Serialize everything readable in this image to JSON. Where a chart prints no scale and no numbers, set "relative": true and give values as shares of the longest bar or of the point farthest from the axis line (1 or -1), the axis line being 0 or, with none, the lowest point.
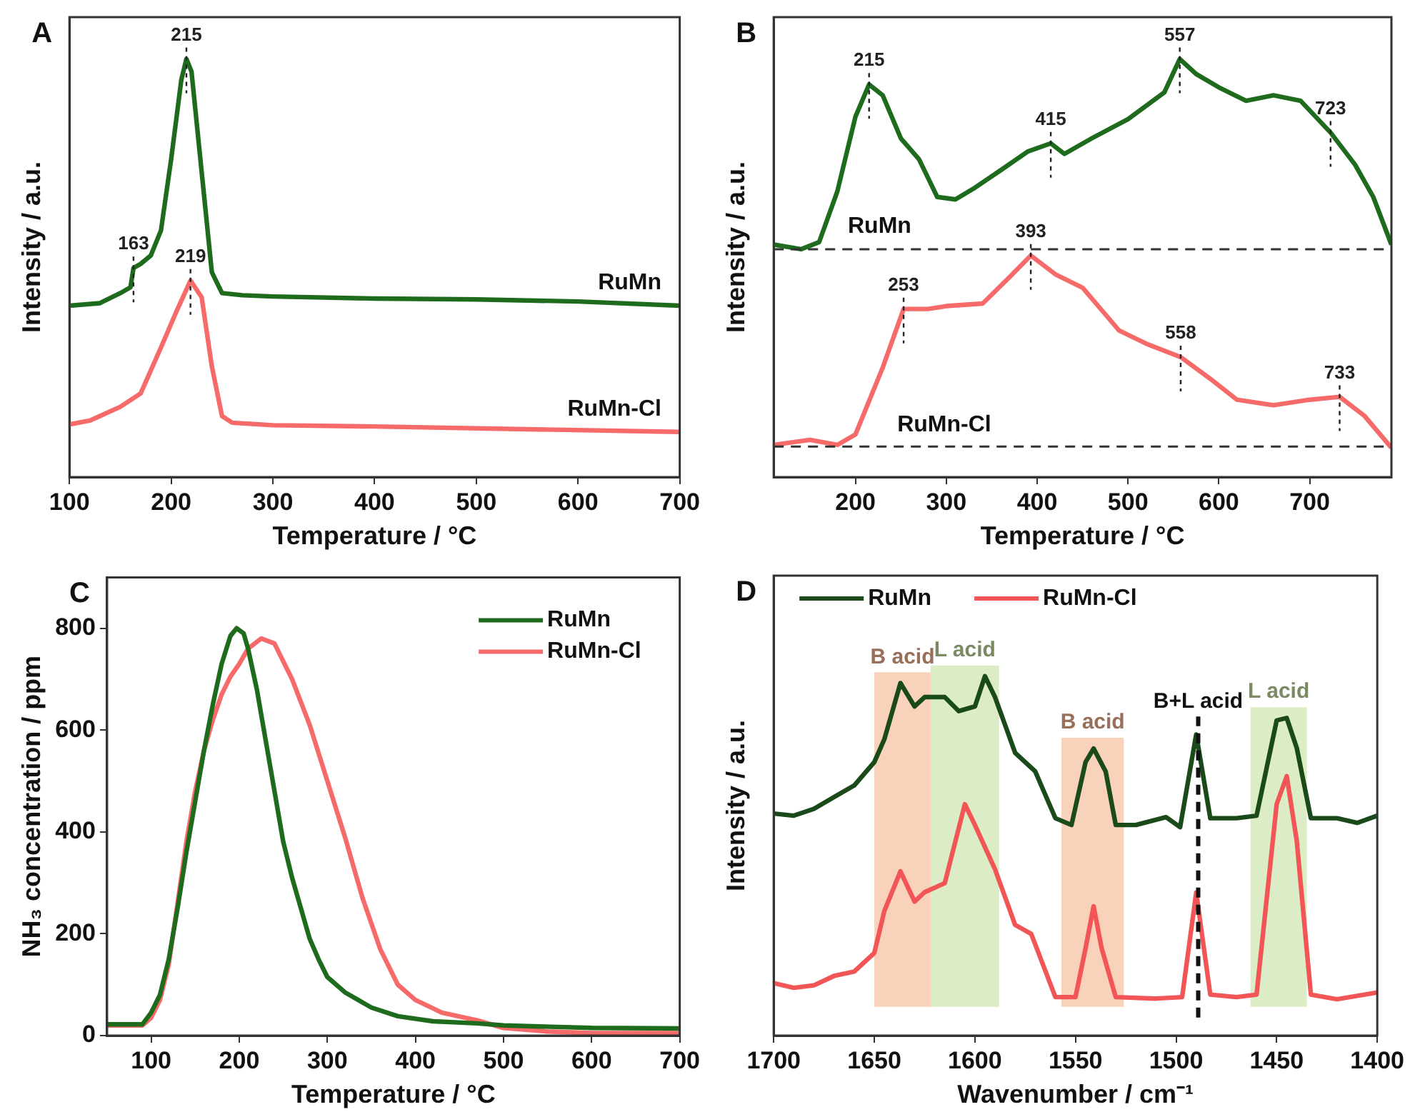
{
  "chart_data": [
    {
      "type": "line",
      "title": "A",
      "xlabel": "Temperature / °C",
      "ylabel": "Intensity / a.u.",
      "relative": true,
      "xlim": [
        100,
        700
      ],
      "xticks": [
        100,
        200,
        300,
        400,
        500,
        600,
        700
      ],
      "legend": false,
      "marker": "none",
      "series": [
        {
          "name": "RuMn",
          "color": "#1e6b1e",
          "x": [
            100,
            130,
            150,
            160,
            163,
            170,
            180,
            190,
            200,
            210,
            215,
            220,
            230,
            240,
            250,
            270,
            300,
            400,
            500,
            600,
            700
          ],
          "values": [
            0.41,
            0.416,
            0.44,
            0.454,
            0.5,
            0.51,
            0.53,
            0.59,
            0.76,
            0.95,
            1.0,
            0.97,
            0.73,
            0.49,
            0.44,
            0.435,
            0.432,
            0.427,
            0.425,
            0.42,
            0.41
          ]
        },
        {
          "name": "RuMn-Cl",
          "color": "#f66a6a",
          "x": [
            100,
            120,
            150,
            170,
            190,
            205,
            219,
            230,
            240,
            250,
            260,
            300,
            400,
            700
          ],
          "values": [
            0.126,
            0.135,
            0.168,
            0.2,
            0.31,
            0.395,
            0.47,
            0.43,
            0.265,
            0.146,
            0.13,
            0.124,
            0.121,
            0.108
          ]
        }
      ],
      "annotations": [
        {
          "text": "163",
          "x": 163,
          "y": 0.5
        },
        {
          "text": "215",
          "x": 215,
          "y": 1.0
        },
        {
          "text": "219",
          "x": 219,
          "y": 0.47
        }
      ]
    },
    {
      "type": "line",
      "title": "B",
      "xlabel": "Temperature / °C",
      "ylabel": "Intensity / a.u.",
      "relative": true,
      "xlim": [
        110,
        790
      ],
      "xticks": [
        200,
        300,
        400,
        500,
        600,
        700
      ],
      "legend": false,
      "marker": "none",
      "series": [
        {
          "name": "RuMn",
          "color": "#1e6b1e",
          "x": [
            110,
            140,
            160,
            180,
            200,
            215,
            230,
            250,
            270,
            290,
            310,
            330,
            360,
            390,
            415,
            430,
            460,
            500,
            540,
            557,
            575,
            600,
            630,
            660,
            690,
            723,
            750,
            770,
            790
          ],
          "values": [
            0.556,
            0.545,
            0.562,
            0.683,
            0.862,
            0.939,
            0.913,
            0.81,
            0.76,
            0.67,
            0.664,
            0.69,
            0.734,
            0.779,
            0.798,
            0.773,
            0.81,
            0.856,
            0.92,
            1.0,
            0.964,
            0.932,
            0.9,
            0.913,
            0.9,
            0.824,
            0.747,
            0.67,
            0.556
          ]
        },
        {
          "name": "RuMn-Cl",
          "color": "#f66a6a",
          "x": [
            110,
            150,
            180,
            200,
            230,
            253,
            280,
            300,
            340,
            370,
            393,
            420,
            450,
            490,
            520,
            558,
            590,
            620,
            660,
            700,
            733,
            760,
            790
          ],
          "values": [
            0.077,
            0.089,
            0.077,
            0.102,
            0.262,
            0.402,
            0.402,
            0.409,
            0.415,
            0.479,
            0.53,
            0.485,
            0.453,
            0.351,
            0.319,
            0.287,
            0.236,
            0.185,
            0.172,
            0.185,
            0.192,
            0.147,
            0.07
          ]
        }
      ],
      "ref_lines": [
        {
          "axis": "y",
          "value": 0.545,
          "color": "#333333",
          "line_style": "dashed"
        },
        {
          "axis": "y",
          "value": 0.073,
          "color": "#333333",
          "line_style": "dashed"
        }
      ],
      "annotations": [
        {
          "text": "215",
          "x": 215,
          "y": 0.939
        },
        {
          "text": "415",
          "x": 415,
          "y": 0.798
        },
        {
          "text": "557",
          "x": 557,
          "y": 1.0
        },
        {
          "text": "723",
          "x": 723,
          "y": 0.824
        },
        {
          "text": "253",
          "x": 253,
          "y": 0.402
        },
        {
          "text": "393",
          "x": 393,
          "y": 0.53
        },
        {
          "text": "558",
          "x": 558,
          "y": 0.287
        },
        {
          "text": "733",
          "x": 733,
          "y": 0.192
        }
      ]
    },
    {
      "type": "line",
      "title": "C",
      "xlabel": "Temperature / °C",
      "ylabel": "NH₃ concentration / ppm",
      "xlim": [
        50,
        700
      ],
      "xticks": [
        100,
        200,
        300,
        400,
        500,
        600,
        700
      ],
      "ylim": [
        0,
        900
      ],
      "yticks": [
        0,
        200,
        400,
        600,
        800
      ],
      "legend": "top right",
      "marker": "none",
      "series": [
        {
          "name": "RuMn",
          "color": "#1e6b1e",
          "x": [
            50,
            90,
            100,
            110,
            120,
            130,
            140,
            150,
            160,
            170,
            180,
            190,
            197,
            205,
            210,
            220,
            230,
            240,
            250,
            260,
            270,
            280,
            290,
            300,
            320,
            350,
            380,
            420,
            470,
            500,
            600,
            700
          ],
          "values": [
            22,
            22,
            45,
            80,
            150,
            250,
            360,
            460,
            560,
            650,
            730,
            785,
            800,
            790,
            760,
            680,
            580,
            480,
            380,
            310,
            250,
            190,
            150,
            115,
            85,
            55,
            38,
            28,
            24,
            20,
            15,
            14
          ]
        },
        {
          "name": "RuMn-Cl",
          "color": "#f66a6a",
          "x": [
            50,
            90,
            100,
            110,
            120,
            130,
            140,
            150,
            160,
            170,
            180,
            190,
            200,
            210,
            225,
            240,
            260,
            280,
            300,
            320,
            340,
            360,
            380,
            400,
            430,
            470,
            500,
            550,
            600,
            700
          ],
          "values": [
            20,
            20,
            35,
            70,
            140,
            260,
            380,
            480,
            560,
            620,
            670,
            705,
            730,
            760,
            780,
            770,
            700,
            610,
            500,
            390,
            270,
            170,
            100,
            70,
            45,
            30,
            15,
            8,
            5,
            5
          ]
        }
      ]
    },
    {
      "type": "line",
      "title": "D",
      "xlabel": "Wavenumber / cm⁻¹",
      "ylabel": "Intensity / a.u.",
      "relative": true,
      "xlim": [
        1700,
        1400
      ],
      "xticks": [
        1700,
        1650,
        1600,
        1550,
        1500,
        1450,
        1400
      ],
      "legend": "top left",
      "marker": "none",
      "series": [
        {
          "name": "RuMn",
          "color": "#1a4a1a",
          "x": [
            1700,
            1690,
            1680,
            1670,
            1660,
            1650,
            1645,
            1637,
            1630,
            1625,
            1615,
            1608,
            1600,
            1595,
            1590,
            1580,
            1570,
            1560,
            1552,
            1545,
            1541,
            1535,
            1530,
            1520,
            1505,
            1498,
            1490,
            1483,
            1470,
            1460,
            1450,
            1445,
            1440,
            1433,
            1420,
            1410,
            1400
          ],
          "values": [
            0.618,
            0.612,
            0.631,
            0.664,
            0.696,
            0.761,
            0.825,
            0.981,
            0.916,
            0.942,
            0.942,
            0.903,
            0.916,
            1.0,
            0.942,
            0.787,
            0.735,
            0.605,
            0.586,
            0.761,
            0.799,
            0.735,
            0.586,
            0.586,
            0.608,
            0.58,
            0.838,
            0.605,
            0.605,
            0.612,
            0.877,
            0.884,
            0.8,
            0.605,
            0.605,
            0.592,
            0.612
          ]
        },
        {
          "name": "RuMn-Cl",
          "color": "#f25555",
          "x": [
            1700,
            1690,
            1680,
            1670,
            1660,
            1650,
            1645,
            1637,
            1630,
            1625,
            1615,
            1605,
            1600,
            1590,
            1580,
            1572,
            1560,
            1550,
            1545,
            1541,
            1537,
            1530,
            1510,
            1497,
            1490,
            1483,
            1470,
            1460,
            1450,
            1445,
            1440,
            1433,
            1420,
            1400
          ],
          "values": [
            0.146,
            0.133,
            0.14,
            0.166,
            0.178,
            0.23,
            0.347,
            0.457,
            0.373,
            0.399,
            0.424,
            0.644,
            0.586,
            0.463,
            0.308,
            0.283,
            0.107,
            0.107,
            0.243,
            0.36,
            0.243,
            0.107,
            0.103,
            0.107,
            0.398,
            0.114,
            0.107,
            0.114,
            0.644,
            0.722,
            0.541,
            0.114,
            0.101,
            0.12
          ]
        }
      ],
      "bands": [
        {
          "axis": "x",
          "from": 1650,
          "to": 1622,
          "label": "B acid",
          "color": "#f5b48f"
        },
        {
          "axis": "x",
          "from": 1622,
          "to": 1588,
          "label": "L acid",
          "color": "#c5e0a0"
        },
        {
          "axis": "x",
          "from": 1557,
          "to": 1526,
          "label": "B acid",
          "color": "#f5b48f"
        },
        {
          "axis": "x",
          "from": 1463,
          "to": 1435,
          "label": "L acid",
          "color": "#c5e0a0"
        }
      ],
      "ref_lines": [
        {
          "axis": "x",
          "value": 1489,
          "label": "B+L acid",
          "color": "#111111",
          "line_style": "dashed"
        }
      ]
    }
  ]
}
